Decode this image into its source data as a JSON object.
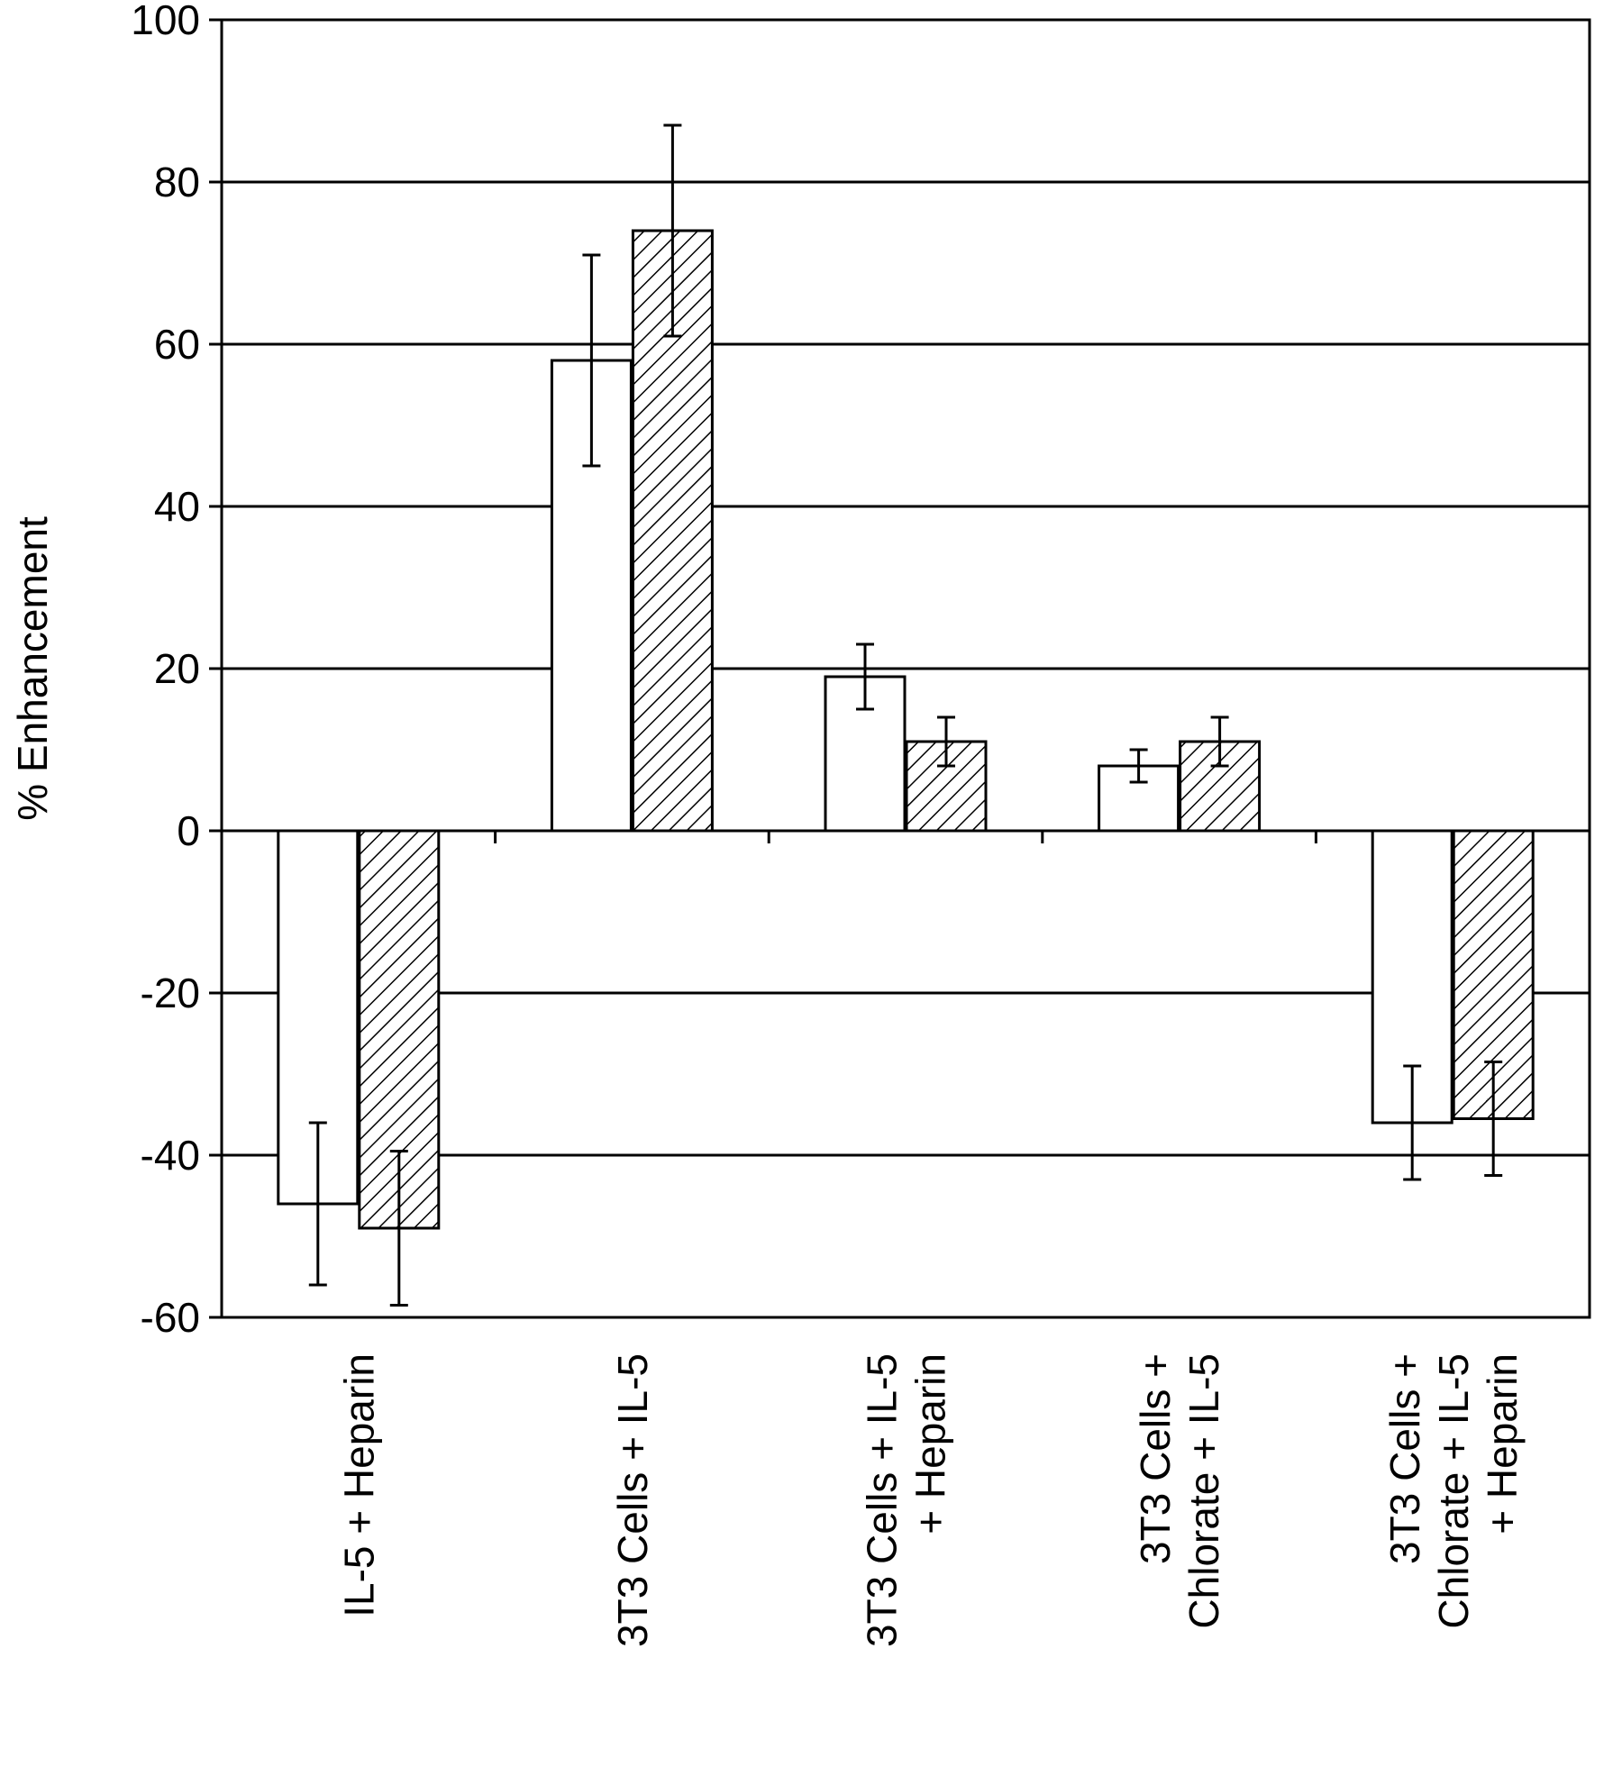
{
  "chart_data": {
    "type": "bar",
    "title": "",
    "xlabel": "",
    "ylabel": "% Enhancement",
    "ylim": [
      -60,
      100
    ],
    "yticks": [
      100,
      80,
      60,
      40,
      20,
      0,
      -20,
      -40,
      -60
    ],
    "grid": true,
    "categories": [
      [
        "IL-5 + Heparin"
      ],
      [
        "3T3 Cells + IL-5"
      ],
      [
        "3T3 Cells + IL-5",
        "+ Heparin"
      ],
      [
        "3T3 Cells +",
        "Chlorate + IL-5"
      ],
      [
        "3T3 Cells +",
        "Chlorate + IL-5",
        "+ Heparin"
      ]
    ],
    "series": [
      {
        "fill": "plain white",
        "values": [
          -46,
          58,
          19,
          8,
          -36
        ],
        "error": [
          10,
          13,
          4,
          2,
          7
        ]
      },
      {
        "fill": "diagonal hatch",
        "values": [
          -49,
          74,
          11,
          11,
          -35.5
        ],
        "error": [
          9.5,
          13,
          3,
          3,
          7
        ]
      }
    ]
  }
}
